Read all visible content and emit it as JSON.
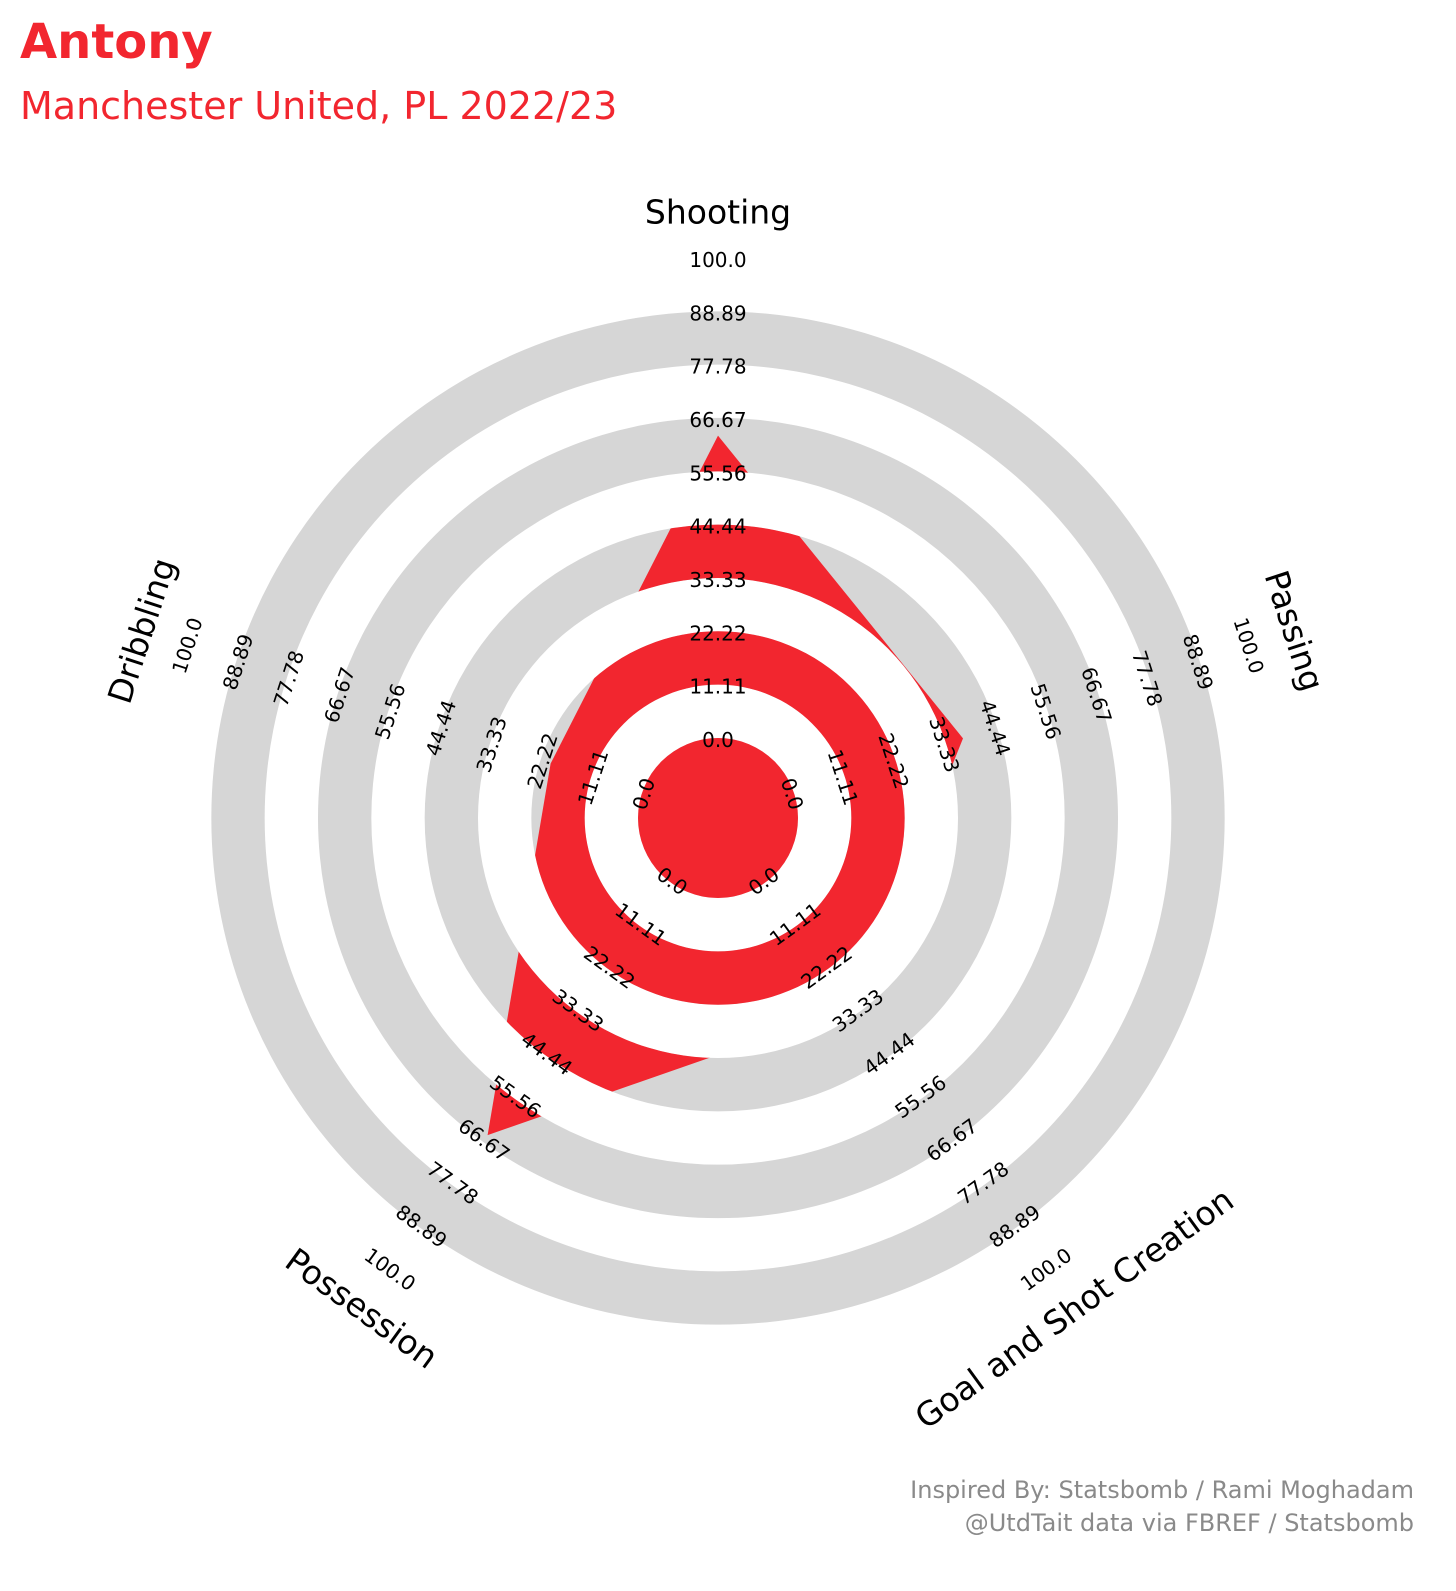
{
  "header": {
    "title": "Antony",
    "subtitle": "Manchester United, PL 2022/23"
  },
  "credits": {
    "line1": "Inspired By: Statsbomb / Rami Moghadam",
    "line2": "@UtdTait data via FBREF / Statsbomb"
  },
  "colors": {
    "accent": "#f2262f",
    "ring": "#d6d6d6",
    "background": "#ffffff",
    "credit_text": "#8a8a8a"
  },
  "chart_data": {
    "type": "radar",
    "title": "Antony",
    "subtitle": "Manchester United, PL 2022/23",
    "parameters": [
      "Shooting",
      "Passing",
      "Goal and Shot Creation",
      "Possession",
      "Dribbling"
    ],
    "values": [
      63,
      37,
      32,
      65,
      20
    ],
    "range": [
      0,
      100
    ],
    "tick_labels": [
      "0.0",
      "11.11",
      "22.22",
      "33.33",
      "44.44",
      "55.56",
      "66.67",
      "77.78",
      "88.89",
      "100.0"
    ]
  }
}
